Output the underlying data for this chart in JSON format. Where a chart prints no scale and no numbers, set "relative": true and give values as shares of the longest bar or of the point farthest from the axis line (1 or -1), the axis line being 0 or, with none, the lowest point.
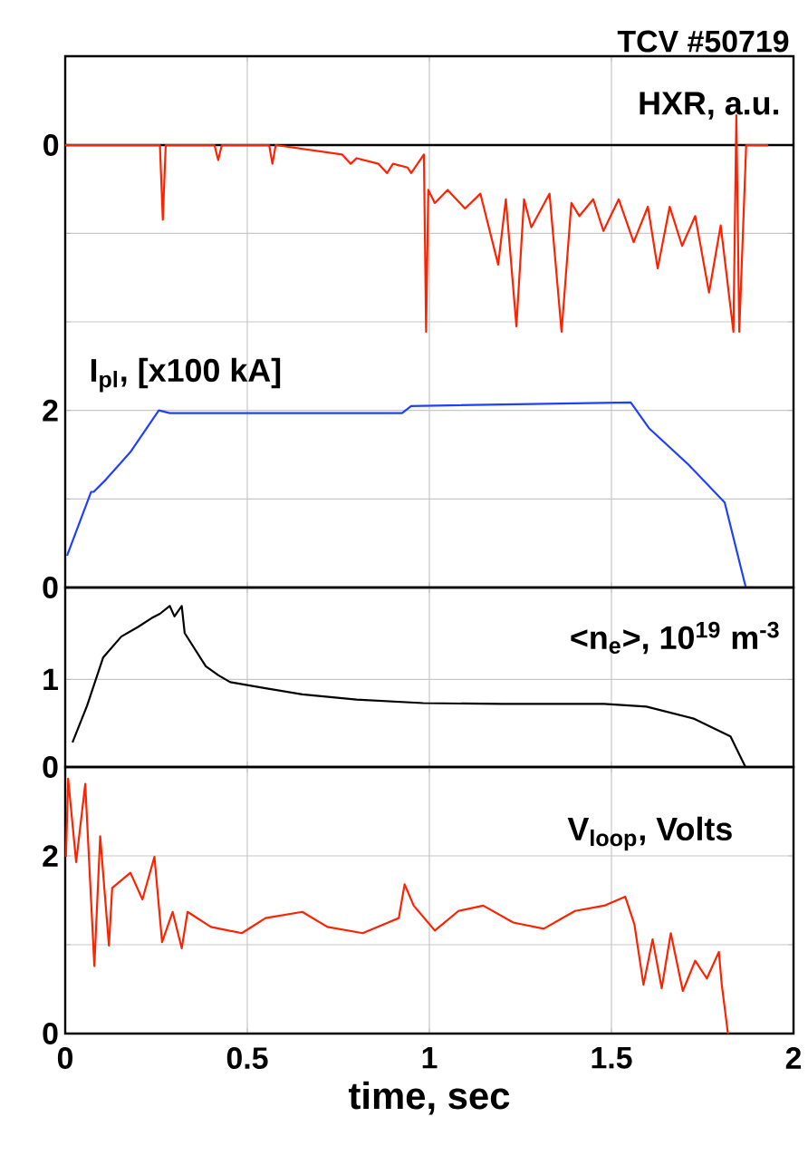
{
  "chart_data": [
    {
      "type": "line",
      "title": "TCV #50719",
      "relative": true,
      "xlim": [
        0,
        2
      ],
      "tick_labels": false,
      "annotations": [
        "0"
      ],
      "ref_lines": [
        {
          "axis": "y",
          "value": 0,
          "color": "#000000"
        }
      ],
      "series": [
        {
          "name": "HXR, a.u.",
          "color": "#ff2200",
          "x": [
            0,
            0.26,
            0.268,
            0.276,
            0.41,
            0.42,
            0.43,
            0.56,
            0.569,
            0.578,
            0.76,
            0.784,
            0.8,
            0.86,
            0.884,
            0.9,
            0.94,
            0.95,
            0.985,
            0.991,
            0.997,
            1.015,
            1.05,
            1.098,
            1.14,
            1.189,
            1.21,
            1.239,
            1.26,
            1.28,
            1.33,
            1.363,
            1.39,
            1.412,
            1.45,
            1.478,
            1.52,
            1.561,
            1.6,
            1.627,
            1.66,
            1.694,
            1.73,
            1.768,
            1.8,
            1.835,
            1.843,
            1.851,
            1.87,
            1.93
          ],
          "values": [
            0,
            0,
            -0.4,
            0,
            0,
            -0.08,
            0,
            0,
            -0.1,
            0,
            -0.05,
            -0.1,
            -0.07,
            -0.1,
            -0.15,
            -0.1,
            -0.12,
            -0.15,
            -0.05,
            -1.0,
            -0.24,
            -0.31,
            -0.24,
            -0.34,
            -0.26,
            -0.64,
            -0.29,
            -0.97,
            -0.29,
            -0.44,
            -0.26,
            -1.0,
            -0.31,
            -0.38,
            -0.29,
            -0.46,
            -0.29,
            -0.52,
            -0.33,
            -0.66,
            -0.33,
            -0.54,
            -0.38,
            -0.79,
            -0.43,
            -1.0,
            0.16,
            -1.0,
            0,
            0
          ]
        }
      ]
    },
    {
      "type": "line",
      "xlim": [
        0,
        2
      ],
      "xticks": [
        0,
        0.5,
        1,
        1.5,
        2
      ],
      "ylim": [
        0,
        6
      ],
      "yticks": [
        0,
        {
          "value": 1,
          "label": null
        },
        2,
        {
          "value": 3,
          "label": null
        },
        {
          "value": 4,
          "label": null
        },
        {
          "value": 5,
          "label": null
        }
      ],
      "grid": true,
      "tick_labels": "y",
      "series": [
        {
          "name": "I$_{pl}$, [x100 kA]",
          "color": "#2040ff",
          "x": [
            0.005,
            0.071,
            0.078,
            0.112,
            0.179,
            0.257,
            0.287,
            0.925,
            0.95,
            1.553,
            1.603,
            1.711,
            1.811,
            1.869
          ],
          "values": [
            0.36,
            1.08,
            1.08,
            1.22,
            1.53,
            2.0,
            1.97,
            1.97,
            2.05,
            2.09,
            1.8,
            1.39,
            0.96,
            0
          ]
        }
      ]
    },
    {
      "type": "line",
      "xlim": [
        0,
        2
      ],
      "xticks": [
        0,
        0.5,
        1,
        1.5,
        2
      ],
      "ylim": [
        0,
        2.05
      ],
      "yticks": [
        0,
        1
      ],
      "grid": true,
      "tick_labels": "y",
      "series": [
        {
          "name": "<n$_{e}$>, 10$^{19}$ m$^{-3}$",
          "color": "#000000",
          "x": [
            0.02,
            0.06,
            0.104,
            0.154,
            0.2,
            0.237,
            0.26,
            0.287,
            0.3,
            0.32,
            0.328,
            0.386,
            0.42,
            0.453,
            0.55,
            0.651,
            0.8,
            0.983,
            1.2,
            1.48,
            1.596,
            1.728,
            1.827,
            1.868
          ],
          "values": [
            0.28,
            0.7,
            1.25,
            1.49,
            1.6,
            1.7,
            1.75,
            1.84,
            1.72,
            1.84,
            1.53,
            1.15,
            1.05,
            0.97,
            0.9,
            0.83,
            0.77,
            0.73,
            0.72,
            0.72,
            0.69,
            0.55,
            0.35,
            0
          ]
        }
      ]
    },
    {
      "type": "line",
      "xlim": [
        0,
        2
      ],
      "xticks": [
        0,
        0.5,
        1,
        1.5,
        2
      ],
      "ylim": [
        0,
        3
      ],
      "yticks": [
        0,
        {
          "value": 1,
          "label": null
        },
        2
      ],
      "grid": true,
      "xlabel": "time, sec",
      "series": [
        {
          "name": "V$_{loop}$, Volts",
          "color": "#ff2200",
          "x": [
            0.002,
            0.008,
            0.03,
            0.055,
            0.08,
            0.096,
            0.12,
            0.129,
            0.179,
            0.212,
            0.245,
            0.266,
            0.295,
            0.32,
            0.336,
            0.4,
            0.485,
            0.55,
            0.651,
            0.72,
            0.817,
            0.916,
            0.932,
            0.957,
            1.015,
            1.08,
            1.148,
            1.23,
            1.314,
            1.4,
            1.48,
            1.538,
            1.563,
            1.588,
            1.613,
            1.638,
            1.663,
            1.696,
            1.73,
            1.762,
            1.795,
            1.803,
            1.82
          ],
          "values": [
            1.99,
            2.87,
            1.93,
            2.81,
            0.76,
            2.22,
            0.99,
            1.64,
            1.81,
            1.51,
            1.99,
            1.03,
            1.37,
            0.96,
            1.37,
            1.2,
            1.13,
            1.3,
            1.37,
            1.2,
            1.13,
            1.3,
            1.68,
            1.44,
            1.16,
            1.38,
            1.44,
            1.25,
            1.18,
            1.38,
            1.44,
            1.54,
            1.23,
            0.55,
            1.06,
            0.51,
            1.13,
            0.48,
            0.82,
            0.62,
            0.92,
            0.55,
            0
          ]
        }
      ]
    }
  ]
}
